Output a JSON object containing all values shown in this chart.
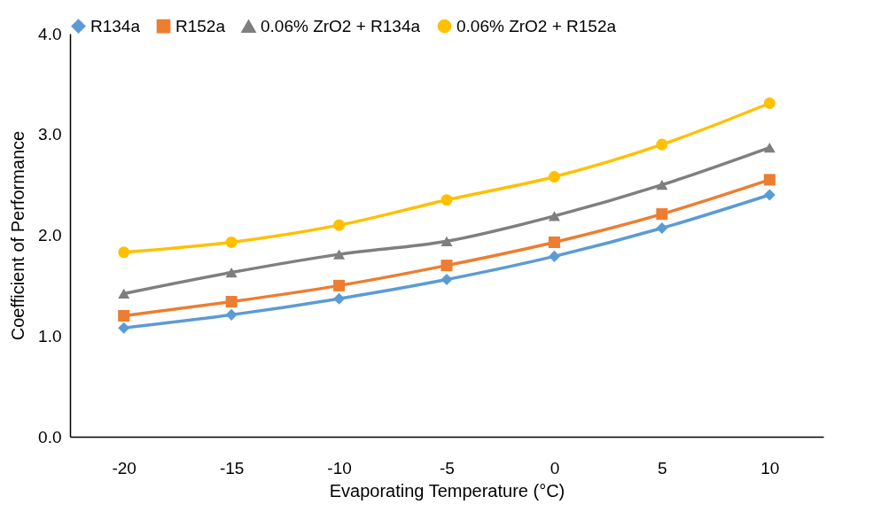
{
  "chart_data": {
    "type": "line",
    "xlabel": "Evaporating Temperature (°C)",
    "ylabel": "Coefficient of Performance",
    "categories": [
      "-20",
      "-15",
      "-10",
      "-5",
      "0",
      "5",
      "10"
    ],
    "series": [
      {
        "name": "R134a",
        "color": "#5b9bd5",
        "marker": "diamond",
        "values": [
          1.08,
          1.21,
          1.37,
          1.56,
          1.79,
          2.07,
          2.4
        ]
      },
      {
        "name": "R152a",
        "color": "#ed7d31",
        "marker": "square",
        "values": [
          1.2,
          1.34,
          1.5,
          1.7,
          1.93,
          2.21,
          2.55
        ]
      },
      {
        "name": "0.06% ZrO2 + R134a",
        "color": "#7f7f7f",
        "marker": "triangle",
        "values": [
          1.42,
          1.63,
          1.81,
          1.94,
          2.19,
          2.5,
          2.87
        ]
      },
      {
        "name": "0.06% ZrO2 + R152a",
        "color": "#ffc000",
        "marker": "circle",
        "values": [
          1.83,
          1.93,
          2.1,
          2.35,
          2.58,
          2.9,
          3.31
        ]
      }
    ],
    "ylim": [
      0,
      4
    ],
    "yticks": [
      {
        "value": 0,
        "label": "0.0"
      },
      {
        "value": 1,
        "label": "1.0"
      },
      {
        "value": 2,
        "label": "2.0"
      },
      {
        "value": 3,
        "label": "3.0"
      },
      {
        "value": 4,
        "label": "4.0"
      }
    ],
    "grid": false,
    "legend": "top",
    "line_style": "solid"
  }
}
